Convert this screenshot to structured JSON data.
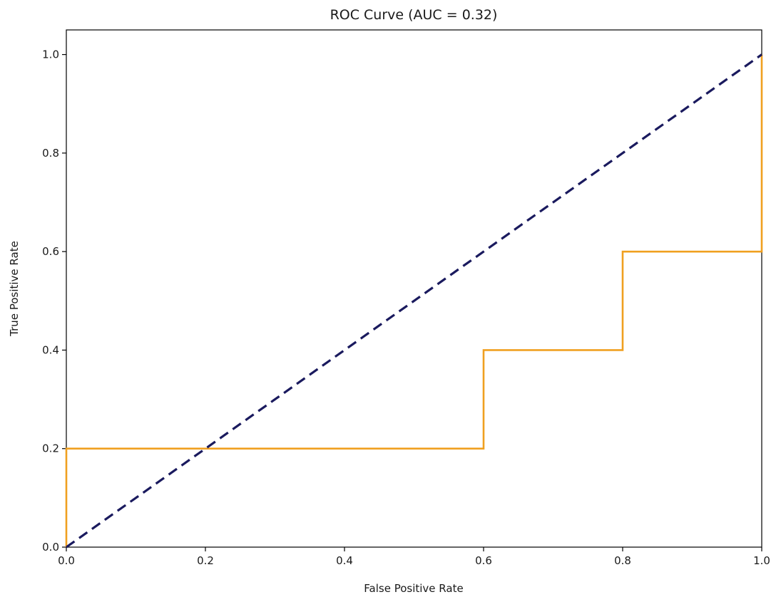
{
  "chart_data": {
    "type": "line",
    "title": "ROC Curve (AUC = 0.32)",
    "xlabel": "False Positive Rate",
    "ylabel": "True Positive Rate",
    "xlim": [
      0.0,
      1.0
    ],
    "ylim": [
      0.0,
      1.05
    ],
    "xticks": [
      "0.0",
      "0.2",
      "0.4",
      "0.6",
      "0.8",
      "1.0"
    ],
    "yticks": [
      "0.0",
      "0.2",
      "0.4",
      "0.6",
      "0.8",
      "1.0"
    ],
    "grid": false,
    "series": [
      {
        "color": "#f0a020",
        "style": "solid",
        "x": [
          0.0,
          0.0,
          0.6,
          0.6,
          0.8,
          0.8,
          1.0,
          1.0
        ],
        "y": [
          0.0,
          0.2,
          0.2,
          0.4,
          0.4,
          0.6,
          0.6,
          1.0
        ]
      },
      {
        "color": "#1a1a5e",
        "style": "dashed",
        "x": [
          0.0,
          1.0
        ],
        "y": [
          0.0,
          1.0
        ]
      }
    ]
  }
}
